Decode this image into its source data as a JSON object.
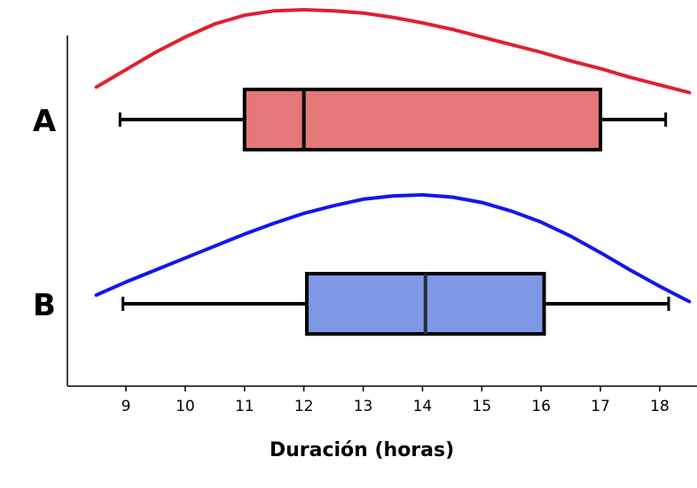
{
  "chart_data": {
    "type": "boxplot",
    "xlabel": "Duración (horas)",
    "x_ticks": [
      9,
      10,
      11,
      12,
      13,
      14,
      15,
      16,
      17,
      18
    ],
    "xlim": [
      8.5,
      18.6
    ],
    "grid": false,
    "legend": "none",
    "series": [
      {
        "name": "A",
        "whisker_low": 8.9,
        "q1": 11,
        "median": 12,
        "q3": 17,
        "whisker_high": 18.1,
        "box_color": "#e57878",
        "curve_color": "#e0202e",
        "density_curve": [
          [
            8.5,
            0.29
          ],
          [
            9.0,
            0.45
          ],
          [
            9.5,
            0.61
          ],
          [
            10.0,
            0.75
          ],
          [
            10.5,
            0.87
          ],
          [
            11.0,
            0.95
          ],
          [
            11.5,
            0.99
          ],
          [
            12.0,
            1.0
          ],
          [
            12.5,
            0.99
          ],
          [
            13.0,
            0.97
          ],
          [
            13.5,
            0.93
          ],
          [
            14.0,
            0.88
          ],
          [
            14.5,
            0.82
          ],
          [
            15.0,
            0.75
          ],
          [
            15.5,
            0.68
          ],
          [
            16.0,
            0.61
          ],
          [
            16.5,
            0.53
          ],
          [
            17.0,
            0.46
          ],
          [
            17.5,
            0.38
          ],
          [
            18.0,
            0.31
          ],
          [
            18.5,
            0.24
          ]
        ]
      },
      {
        "name": "B",
        "whisker_low": 8.95,
        "q1": 12.05,
        "median": 14.05,
        "q3": 16.05,
        "whisker_high": 18.15,
        "box_color": "#7e98e6",
        "curve_color": "#1515ee",
        "density_curve": [
          [
            8.5,
            0.08
          ],
          [
            9.0,
            0.2
          ],
          [
            9.5,
            0.31
          ],
          [
            10.0,
            0.42
          ],
          [
            10.5,
            0.53
          ],
          [
            11.0,
            0.64
          ],
          [
            11.5,
            0.74
          ],
          [
            12.0,
            0.83
          ],
          [
            12.5,
            0.9
          ],
          [
            13.0,
            0.96
          ],
          [
            13.5,
            0.99
          ],
          [
            14.0,
            1.0
          ],
          [
            14.5,
            0.98
          ],
          [
            15.0,
            0.93
          ],
          [
            15.5,
            0.85
          ],
          [
            16.0,
            0.75
          ],
          [
            16.5,
            0.62
          ],
          [
            17.0,
            0.47
          ],
          [
            17.5,
            0.31
          ],
          [
            18.0,
            0.16
          ],
          [
            18.5,
            0.02
          ]
        ]
      }
    ]
  }
}
